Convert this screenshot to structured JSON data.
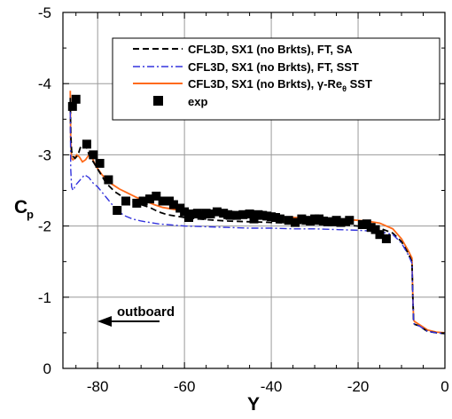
{
  "chart_data": {
    "type": "line",
    "title": "",
    "xlabel": "Y",
    "ylabel_main": "C",
    "ylabel_sub": "p",
    "xlim": [
      -88,
      0
    ],
    "ylim": [
      0,
      -5
    ],
    "y_inverted": true,
    "grid": true,
    "legend_position": "top-right",
    "x_ticks": [
      {
        "value": -80,
        "label": "-80"
      },
      {
        "value": -60,
        "label": "-60"
      },
      {
        "value": -40,
        "label": "-40"
      },
      {
        "value": -20,
        "label": "-20"
      },
      {
        "value": 0,
        "label": "0"
      }
    ],
    "y_ticks": [
      {
        "value": 0,
        "label": "0"
      },
      {
        "value": -1,
        "label": "-1"
      },
      {
        "value": -2,
        "label": "-2"
      },
      {
        "value": -3,
        "label": "-3"
      },
      {
        "value": -4,
        "label": "-4"
      },
      {
        "value": -5,
        "label": "-5"
      }
    ],
    "annotation": {
      "text": "outboard",
      "arrow": "left"
    },
    "series": [
      {
        "name": "CFL3D, SX1 (no Brkts), FT, SA",
        "style": "dashed",
        "color": "#000000",
        "x": [
          -86.3,
          -86.2,
          -86.0,
          -85.7,
          -85.2,
          -84.5,
          -84.0,
          -83.2,
          -82.5,
          -82.0,
          -81.0,
          -80.0,
          -78.0,
          -76.0,
          -74.0,
          -72.0,
          -70.0,
          -68.0,
          -66.0,
          -64.0,
          -60.0,
          -55.0,
          -50.0,
          -45.0,
          -40.0,
          -35.0,
          -30.0,
          -25.0,
          -20.0,
          -17.0,
          -15.0,
          -12.0,
          -10.0,
          -8.5,
          -7.6,
          -7.4,
          -7.2,
          -7.0,
          -6.0,
          -4.0,
          -2.0,
          0.0
        ],
        "y": [
          -3.8,
          -3.3,
          -3.05,
          -2.98,
          -2.95,
          -3.0,
          -3.1,
          -3.15,
          -3.1,
          -3.0,
          -2.9,
          -2.8,
          -2.6,
          -2.48,
          -2.4,
          -2.35,
          -2.3,
          -2.26,
          -2.2,
          -2.16,
          -2.12,
          -2.09,
          -2.07,
          -2.06,
          -2.05,
          -2.04,
          -2.03,
          -2.02,
          -2.0,
          -1.98,
          -1.97,
          -1.9,
          -1.78,
          -1.62,
          -1.5,
          -1.0,
          -0.65,
          -0.62,
          -0.6,
          -0.52,
          -0.5,
          -0.49
        ]
      },
      {
        "name": "CFL3D, SX1 (no Brkts), FT, SST",
        "style": "dashdot",
        "color": "#3333dd",
        "x": [
          -86.3,
          -86.2,
          -86.0,
          -85.7,
          -85.0,
          -84.0,
          -83.0,
          -82.0,
          -81.0,
          -80.0,
          -78.0,
          -76.0,
          -74.0,
          -72.0,
          -70.0,
          -68.0,
          -66.0,
          -64.0,
          -60.0,
          -55.0,
          -50.0,
          -45.0,
          -40.0,
          -35.0,
          -30.0,
          -25.0,
          -20.0,
          -17.0,
          -15.0,
          -12.0,
          -10.0,
          -8.5,
          -7.6,
          -7.4,
          -7.2,
          -7.0,
          -6.0,
          -4.0,
          -2.0,
          0.0
        ],
        "y": [
          -3.6,
          -2.8,
          -2.55,
          -2.5,
          -2.58,
          -2.65,
          -2.72,
          -2.68,
          -2.6,
          -2.55,
          -2.4,
          -2.25,
          -2.15,
          -2.1,
          -2.07,
          -2.05,
          -2.03,
          -2.02,
          -2.0,
          -1.99,
          -1.98,
          -1.97,
          -1.97,
          -1.96,
          -1.96,
          -1.95,
          -1.94,
          -1.93,
          -1.92,
          -1.88,
          -1.76,
          -1.6,
          -1.48,
          -1.0,
          -0.65,
          -0.62,
          -0.6,
          -0.52,
          -0.5,
          -0.49
        ]
      },
      {
        "name": "CFL3D, SX1 (no Brkts), γ-Reθ SST",
        "name_main": "CFL3D, SX1 (no Brkts), ",
        "name_gamma": "γ",
        "name_dash": "-Re",
        "name_theta": "θ",
        "name_tail": " SST",
        "style": "solid",
        "color": "#ff6a1a",
        "x": [
          -86.3,
          -86.2,
          -86.0,
          -85.7,
          -85.3,
          -84.8,
          -84.2,
          -83.5,
          -82.8,
          -82.0,
          -81.2,
          -80.5,
          -79.0,
          -77.0,
          -75.0,
          -73.0,
          -71.0,
          -69.0,
          -67.0,
          -65.0,
          -60.0,
          -55.0,
          -50.0,
          -45.0,
          -40.0,
          -35.0,
          -30.0,
          -25.0,
          -20.0,
          -17.0,
          -15.0,
          -12.0,
          -10.0,
          -8.5,
          -7.6,
          -7.4,
          -7.2,
          -7.0,
          -6.0,
          -4.0,
          -2.0,
          0.0
        ],
        "y": [
          -3.9,
          -3.2,
          -2.95,
          -2.93,
          -2.96,
          -3.0,
          -2.97,
          -2.9,
          -2.93,
          -3.0,
          -2.95,
          -2.85,
          -2.72,
          -2.6,
          -2.52,
          -2.46,
          -2.4,
          -2.35,
          -2.3,
          -2.26,
          -2.21,
          -2.18,
          -2.16,
          -2.14,
          -2.13,
          -2.12,
          -2.11,
          -2.1,
          -2.08,
          -2.06,
          -2.04,
          -1.96,
          -1.82,
          -1.66,
          -1.55,
          -1.0,
          -0.68,
          -0.66,
          -0.62,
          -0.54,
          -0.51,
          -0.5
        ]
      },
      {
        "name": "exp",
        "style": "marker",
        "color": "#000000",
        "x": [
          -85.8,
          -85.0,
          -82.5,
          -81.0,
          -79.5,
          -77.5,
          -75.5,
          -73.5,
          -71.0,
          -69.5,
          -68.0,
          -66.5,
          -65.0,
          -63.5,
          -62.5,
          -61.0,
          -60.0,
          -59.0,
          -58.0,
          -57.0,
          -56.0,
          -55.0,
          -54.0,
          -52.5,
          -51.0,
          -50.0,
          -49.5,
          -48.0,
          -46.5,
          -45.0,
          -44.0,
          -43.0,
          -42.0,
          -41.0,
          -40.0,
          -39.0,
          -38.0,
          -36.0,
          -34.5,
          -33.0,
          -32.0,
          -31.0,
          -30.0,
          -29.0,
          -28.0,
          -27.0,
          -26.0,
          -25.0,
          -24.0,
          -22.0,
          -19.0,
          -18.0,
          -17.0,
          -16.0,
          -15.0,
          -13.5
        ],
        "y": [
          -3.68,
          -3.78,
          -3.15,
          -3.0,
          -2.88,
          -2.65,
          -2.22,
          -2.35,
          -2.32,
          -2.35,
          -2.38,
          -2.42,
          -2.35,
          -2.35,
          -2.3,
          -2.25,
          -2.2,
          -2.12,
          -2.17,
          -2.18,
          -2.15,
          -2.18,
          -2.17,
          -2.2,
          -2.18,
          -2.16,
          -2.15,
          -2.15,
          -2.16,
          -2.17,
          -2.1,
          -2.16,
          -2.15,
          -2.14,
          -2.13,
          -2.12,
          -2.1,
          -2.08,
          -2.05,
          -2.1,
          -2.08,
          -2.07,
          -2.1,
          -2.1,
          -2.07,
          -2.06,
          -2.06,
          -2.08,
          -2.05,
          -2.08,
          -2.02,
          -2.03,
          -1.98,
          -1.95,
          -1.88,
          -1.82
        ]
      }
    ]
  }
}
